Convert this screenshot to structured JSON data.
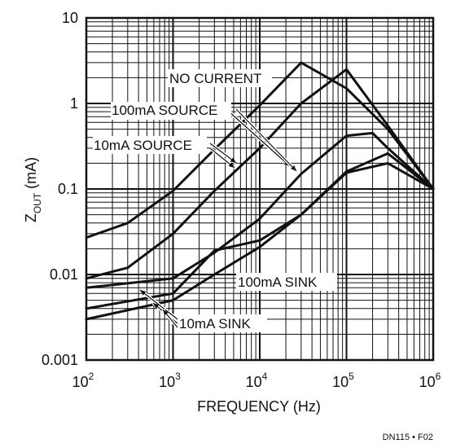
{
  "chart_data": {
    "type": "line",
    "xlabel": "FREQUENCY (Hz)",
    "ylabel": "Z",
    "ylabel_sub": "OUT",
    "ylabel_unit": " (mA)",
    "x_scale": "log",
    "y_scale": "log",
    "xlim": [
      100,
      1000000
    ],
    "ylim": [
      0.001,
      10
    ],
    "grid": true,
    "legend": "inline annotations",
    "x_ticks": [
      {
        "base": "10",
        "exp": "2"
      },
      {
        "base": "10",
        "exp": "3"
      },
      {
        "base": "10",
        "exp": "4"
      },
      {
        "base": "10",
        "exp": "5"
      },
      {
        "base": "10",
        "exp": "6"
      }
    ],
    "y_ticks": [
      "10",
      "1",
      "0.1",
      "0.01",
      "0.001"
    ],
    "series": [
      {
        "name": "NO CURRENT",
        "x": [
          100,
          300,
          1000,
          3000,
          10000,
          30000,
          100000,
          300000,
          1000000
        ],
        "y": [
          0.027,
          0.04,
          0.095,
          0.29,
          0.95,
          3.0,
          1.5,
          0.5,
          0.1
        ]
      },
      {
        "name": "100mA SOURCE",
        "x": [
          100,
          300,
          1000,
          3000,
          10000,
          30000,
          100000,
          300000,
          1000000
        ],
        "y": [
          0.009,
          0.012,
          0.03,
          0.095,
          0.3,
          1.0,
          2.5,
          0.55,
          0.1
        ]
      },
      {
        "name": "10mA SOURCE",
        "x": [
          100,
          1000,
          3000,
          10000,
          30000,
          100000,
          200000,
          300000,
          1000000
        ],
        "y": [
          0.007,
          0.009,
          0.018,
          0.045,
          0.15,
          0.42,
          0.45,
          0.3,
          0.1
        ]
      },
      {
        "name": "100mA SINK",
        "x": [
          100,
          1000,
          3000,
          10000,
          30000,
          100000,
          300000,
          1000000
        ],
        "y": [
          0.004,
          0.006,
          0.019,
          0.025,
          0.05,
          0.16,
          0.26,
          0.1
        ]
      },
      {
        "name": "10mA SINK",
        "x": [
          100,
          1000,
          3000,
          10000,
          30000,
          100000,
          300000,
          1000000
        ],
        "y": [
          0.003,
          0.005,
          0.01,
          0.021,
          0.05,
          0.155,
          0.2,
          0.1
        ]
      }
    ],
    "annotations": [
      "NO CURRENT",
      "100mA SOURCE",
      "10mA SOURCE",
      "100mA SINK",
      "10mA SINK"
    ]
  },
  "footnote": "DN115 • F02"
}
